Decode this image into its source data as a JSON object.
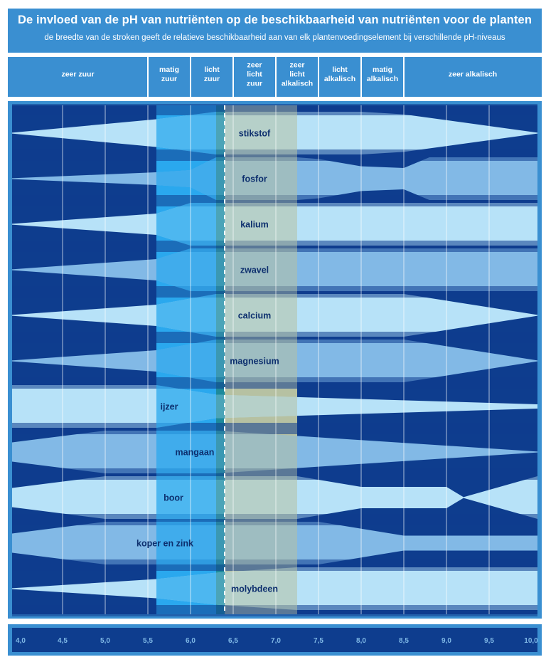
{
  "title": "De invloed van de pH van nutriënten op de beschikbaarheid van nutriënten voor de planten",
  "subtitle": "de breedte van de stroken geeft de relatieve beschikbaarheid aan van elk plantenvoedingselement bij verschillende pH-niveaus",
  "zones": [
    {
      "label": "zeer zuur",
      "from": 4.0,
      "to": 5.5
    },
    {
      "label": "matig\nzuur",
      "from": 5.5,
      "to": 6.0
    },
    {
      "label": "licht\nzuur",
      "from": 6.0,
      "to": 6.5
    },
    {
      "label": "zeer\nlicht\nzuur",
      "from": 6.5,
      "to": 7.0
    },
    {
      "label": "zeer\nlicht\nalkalisch",
      "from": 7.0,
      "to": 7.5
    },
    {
      "label": "licht\nalkalisch",
      "from": 7.5,
      "to": 8.0
    },
    {
      "label": "matig\nalkalisch",
      "from": 8.0,
      "to": 8.5
    },
    {
      "label": "zeer alkalisch",
      "from": 8.5,
      "to": 10.0
    }
  ],
  "ph_ticks": [
    "4,0",
    "4,5",
    "5,0",
    "5,5",
    "6,0",
    "6,5",
    "7,0",
    "7,5",
    "8,0",
    "8,5",
    "9,0",
    "9,5",
    "10,0"
  ],
  "ph_values": [
    4.0,
    4.5,
    5.0,
    5.5,
    6.0,
    6.5,
    7.0,
    7.5,
    8.0,
    8.5,
    9.0,
    9.5,
    10.0
  ],
  "optimum_ph": 6.4,
  "highlight_bands": {
    "blue": {
      "from": 5.6,
      "to": 6.3,
      "color": "#2aa8ee"
    },
    "olive": {
      "from": 6.4,
      "to": 7.25,
      "color": "#b6c1a2"
    },
    "teal": {
      "from": 6.3,
      "to": 6.4,
      "color": "#1d8a9c"
    }
  },
  "colors": {
    "background": "#0e3d8e",
    "frame": "#3a8fd1",
    "light_band": "#b7e2f8",
    "mid_band": "#82b9e6",
    "label": "#0d2f6e"
  },
  "nutrients": [
    {
      "name": "stikstof",
      "color": "light",
      "profile": [
        [
          4.0,
          0.0
        ],
        [
          5.6,
          0.65
        ],
        [
          6.3,
          1.0
        ],
        [
          7.25,
          1.0
        ],
        [
          8.0,
          1.0
        ],
        [
          8.5,
          0.88
        ],
        [
          10.0,
          0.0
        ]
      ]
    },
    {
      "name": "fosfor",
      "color": "mid",
      "profile": [
        [
          4.0,
          0.0
        ],
        [
          5.6,
          0.3
        ],
        [
          6.0,
          0.4
        ],
        [
          6.3,
          1.0
        ],
        [
          7.25,
          1.0
        ],
        [
          7.5,
          0.92
        ],
        [
          8.0,
          0.58
        ],
        [
          8.5,
          0.5
        ],
        [
          8.8,
          1.0
        ],
        [
          10.0,
          1.0
        ]
      ]
    },
    {
      "name": "kalium",
      "color": "light",
      "profile": [
        [
          4.0,
          0.0
        ],
        [
          5.6,
          0.5
        ],
        [
          6.0,
          1.0
        ],
        [
          10.0,
          1.0
        ]
      ]
    },
    {
      "name": "zwavel",
      "color": "mid",
      "profile": [
        [
          4.0,
          0.0
        ],
        [
          5.6,
          0.5
        ],
        [
          6.0,
          1.0
        ],
        [
          10.0,
          1.0
        ]
      ]
    },
    {
      "name": "calcium",
      "color": "light",
      "profile": [
        [
          4.0,
          0.0
        ],
        [
          5.6,
          0.5
        ],
        [
          6.3,
          1.0
        ],
        [
          8.5,
          1.0
        ],
        [
          10.0,
          0.0
        ]
      ]
    },
    {
      "name": "magnesium",
      "color": "mid",
      "profile": [
        [
          4.0,
          0.0
        ],
        [
          5.6,
          0.5
        ],
        [
          6.3,
          1.0
        ],
        [
          8.5,
          1.0
        ],
        [
          10.0,
          0.0
        ]
      ]
    },
    {
      "name": "ijzer",
      "color": "light",
      "profile": [
        [
          4.0,
          1.0
        ],
        [
          5.6,
          1.0
        ],
        [
          6.3,
          0.55
        ],
        [
          10.0,
          0.1
        ]
      ]
    },
    {
      "name": "mangaan",
      "color": "mid",
      "profile": [
        [
          4.0,
          0.45
        ],
        [
          5.0,
          1.0
        ],
        [
          6.3,
          1.0
        ],
        [
          10.0,
          0.0
        ]
      ]
    },
    {
      "name": "boor",
      "color": "light",
      "profile": [
        [
          4.0,
          0.45
        ],
        [
          5.0,
          1.0
        ],
        [
          6.3,
          1.0
        ],
        [
          7.25,
          1.0
        ],
        [
          8.0,
          0.5
        ],
        [
          9.0,
          0.5
        ],
        [
          9.2,
          0.0
        ],
        [
          10.0,
          1.0
        ]
      ]
    },
    {
      "name": "koper en zink",
      "color": "mid",
      "profile": [
        [
          4.0,
          0.45
        ],
        [
          5.0,
          1.0
        ],
        [
          6.3,
          1.0
        ],
        [
          7.5,
          1.0
        ],
        [
          8.5,
          0.35
        ],
        [
          10.0,
          0.35
        ]
      ]
    },
    {
      "name": "molybdeen",
      "color": "light",
      "profile": [
        [
          4.0,
          0.0
        ],
        [
          5.6,
          0.45
        ],
        [
          6.3,
          0.75
        ],
        [
          7.25,
          1.0
        ],
        [
          10.0,
          1.0
        ]
      ]
    }
  ]
}
